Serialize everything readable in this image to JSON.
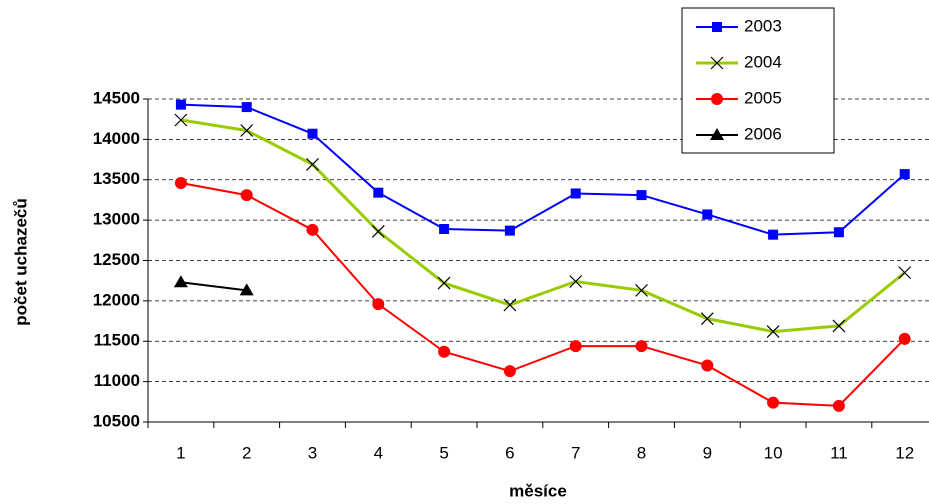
{
  "chart_data": {
    "type": "line",
    "xlabel": "měsíce",
    "ylabel": "počet uchazečů",
    "categories": [
      "1",
      "2",
      "3",
      "4",
      "5",
      "6",
      "7",
      "8",
      "9",
      "10",
      "11",
      "12"
    ],
    "series": [
      {
        "name": "2003",
        "color": "#0000ff",
        "marker": "square",
        "values": [
          14430,
          14400,
          14070,
          13340,
          12890,
          12870,
          13330,
          13310,
          13070,
          12820,
          12850,
          13570
        ]
      },
      {
        "name": "2004",
        "color": "#99cc00",
        "marker": "x",
        "values": [
          14240,
          14110,
          13690,
          12860,
          12220,
          11950,
          12240,
          12130,
          11780,
          11620,
          11690,
          12350
        ]
      },
      {
        "name": "2005",
        "color": "#ff0000",
        "marker": "circle",
        "values": [
          13460,
          13310,
          12880,
          11960,
          11370,
          11130,
          11440,
          11440,
          11200,
          10740,
          10700,
          11530
        ]
      },
      {
        "name": "2006",
        "color": "#000000",
        "marker": "triangle",
        "values": [
          12230,
          12130,
          null,
          null,
          null,
          null,
          null,
          null,
          null,
          null,
          null,
          null
        ]
      }
    ],
    "ylim": [
      10500,
      14500
    ],
    "yticks": [
      10500,
      11000,
      11500,
      12000,
      12500,
      13000,
      13500,
      14000,
      14500
    ],
    "grid": true,
    "legend": "top-right"
  }
}
